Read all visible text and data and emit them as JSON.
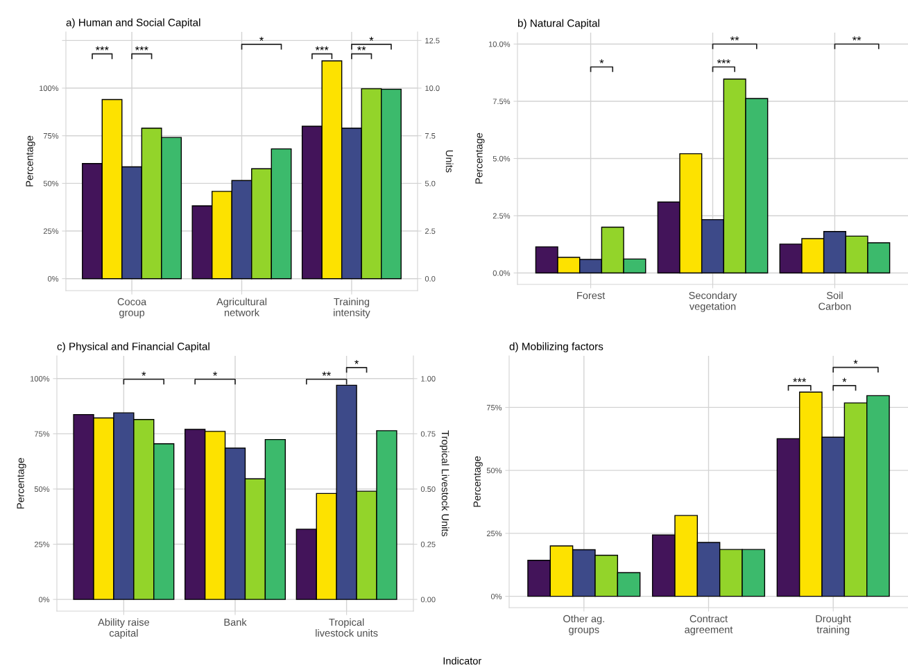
{
  "chart_data": [
    {
      "type": "bar",
      "title": "a) Human and Social Capital",
      "ylabel": "Percentage",
      "y2label": "Units",
      "categories": [
        "Cocoa\ngroup",
        "Agricultural\nnetwork",
        "Training\nintensity"
      ],
      "series": [
        {
          "color": "#43145a",
          "values": [
            60.4,
            38.2,
            null
          ]
        },
        {
          "color": "#fde200",
          "values": [
            94.0,
            45.8,
            null
          ]
        },
        {
          "color": "#3d4a89",
          "values": [
            58.7,
            51.5,
            null
          ]
        },
        {
          "color": "#93d42a",
          "values": [
            79.0,
            57.7,
            null
          ]
        },
        {
          "color": "#3cba6c",
          "values": [
            74.1,
            68.1,
            null
          ]
        },
        {
          "color": "#43145a",
          "axis": "y2",
          "values": [
            null,
            null,
            8.0
          ]
        },
        {
          "color": "#fde200",
          "axis": "y2",
          "values": [
            null,
            null,
            11.43
          ]
        },
        {
          "color": "#3d4a89",
          "axis": "y2",
          "values": [
            null,
            null,
            7.9
          ]
        },
        {
          "color": "#93d42a",
          "axis": "y2",
          "values": [
            null,
            null,
            9.97
          ]
        },
        {
          "color": "#3cba6c",
          "axis": "y2",
          "values": [
            null,
            null,
            9.94
          ]
        }
      ],
      "ylim": [
        -6.3,
        129.5
      ],
      "yticks": [
        {
          "value": 0,
          "label": "0%"
        },
        {
          "value": 25,
          "label": "25%"
        },
        {
          "value": 50,
          "label": "50%"
        },
        {
          "value": 75,
          "label": "75%"
        },
        {
          "value": 100,
          "label": "100%"
        },
        {
          "value": 125,
          "label": null
        }
      ],
      "y2lim": [
        -0.63,
        12.95
      ],
      "y2ticks": [
        {
          "value": 0,
          "label": "0.0"
        },
        {
          "value": 2.5,
          "label": "2.5"
        },
        {
          "value": 5,
          "label": "5.0"
        },
        {
          "value": 7.5,
          "label": "7.5"
        },
        {
          "value": 10,
          "label": "10.0"
        },
        {
          "value": 12.5,
          "label": "12.5"
        }
      ],
      "grid": true,
      "annotations": [
        "***",
        "***",
        "*",
        "***",
        "**",
        "*"
      ]
    },
    {
      "type": "bar",
      "title": "b) Natural Capital",
      "ylabel": "Percentage",
      "categories": [
        "Forest",
        "Secondary\nvegetation",
        "Soil\nCarbon"
      ],
      "series": [
        {
          "color": "#43145a",
          "values": [
            1.14,
            3.1,
            1.26
          ]
        },
        {
          "color": "#fde200",
          "values": [
            0.68,
            5.21,
            1.5
          ]
        },
        {
          "color": "#3d4a89",
          "values": [
            0.59,
            2.33,
            1.81
          ]
        },
        {
          "color": "#93d42a",
          "values": [
            2.0,
            8.47,
            1.61
          ]
        },
        {
          "color": "#3cba6c",
          "values": [
            0.61,
            7.62,
            1.32
          ]
        }
      ],
      "ylim": [
        -0.5,
        10.5
      ],
      "yticks": [
        {
          "value": 0,
          "label": "0.0%"
        },
        {
          "value": 2.5,
          "label": "2.5%"
        },
        {
          "value": 5,
          "label": "5.0%"
        },
        {
          "value": 7.5,
          "label": "7.5%"
        },
        {
          "value": 10,
          "label": "10.0%"
        }
      ],
      "grid": true,
      "annotations": [
        "*",
        "***",
        "**",
        "**"
      ]
    },
    {
      "type": "bar",
      "title": "c) Physical and Financial Capital",
      "ylabel": "Percentage",
      "y2label": "Tropical Livestock Units",
      "categories": [
        "Ability raise\ncapital",
        "Bank",
        "Tropical\nlivestock units"
      ],
      "series": [
        {
          "color": "#43145a",
          "values": [
            83.7,
            77.0,
            null
          ]
        },
        {
          "color": "#fde200",
          "values": [
            82.2,
            76.1,
            null
          ]
        },
        {
          "color": "#3d4a89",
          "values": [
            84.5,
            68.5,
            null
          ]
        },
        {
          "color": "#93d42a",
          "values": [
            81.5,
            54.6,
            null
          ]
        },
        {
          "color": "#3cba6c",
          "values": [
            70.5,
            72.4,
            null
          ]
        },
        {
          "color": "#43145a",
          "axis": "y2",
          "values": [
            null,
            null,
            0.318
          ]
        },
        {
          "color": "#fde200",
          "axis": "y2",
          "values": [
            null,
            null,
            0.48
          ]
        },
        {
          "color": "#3d4a89",
          "axis": "y2",
          "values": [
            null,
            null,
            0.97
          ]
        },
        {
          "color": "#93d42a",
          "axis": "y2",
          "values": [
            null,
            null,
            0.49
          ]
        },
        {
          "color": "#3cba6c",
          "axis": "y2",
          "values": [
            null,
            null,
            0.764
          ]
        }
      ],
      "ylim": [
        -5.3,
        110.3
      ],
      "yticks": [
        {
          "value": 0,
          "label": "0%"
        },
        {
          "value": 25,
          "label": "25%"
        },
        {
          "value": 50,
          "label": "50%"
        },
        {
          "value": 75,
          "label": "75%"
        },
        {
          "value": 100,
          "label": "100%"
        }
      ],
      "y2lim": [
        -0.053,
        1.103
      ],
      "y2ticks": [
        {
          "value": 0,
          "label": "0.00"
        },
        {
          "value": 0.25,
          "label": "0.25"
        },
        {
          "value": 0.5,
          "label": "0.50"
        },
        {
          "value": 0.75,
          "label": "0.75"
        },
        {
          "value": 1,
          "label": "1.00"
        }
      ],
      "grid": true,
      "annotations": [
        "*",
        "*",
        "**",
        "*",
        "Indicator"
      ]
    },
    {
      "type": "bar",
      "title": "d) Mobilizing factors",
      "ylabel": "Percentage",
      "categories": [
        "Other ag.\ngroups",
        "Contract\nagreement",
        "Drought\ntraining"
      ],
      "series": [
        {
          "color": "#43145a",
          "values": [
            14.3,
            24.4,
            62.6
          ]
        },
        {
          "color": "#fde200",
          "values": [
            20.0,
            32.1,
            81.1
          ]
        },
        {
          "color": "#3d4a89",
          "values": [
            18.5,
            21.4,
            63.2
          ]
        },
        {
          "color": "#93d42a",
          "values": [
            16.3,
            18.6,
            76.8
          ]
        },
        {
          "color": "#3cba6c",
          "values": [
            9.4,
            18.6,
            79.7
          ]
        }
      ],
      "ylim": [
        -4.5,
        95.5
      ],
      "yticks": [
        {
          "value": 0,
          "label": "0%"
        },
        {
          "value": 25,
          "label": "25%"
        },
        {
          "value": 50,
          "label": "50%"
        },
        {
          "value": 75,
          "label": "75%"
        }
      ],
      "grid": true,
      "annotations": [
        "***",
        "*",
        "*"
      ]
    }
  ]
}
